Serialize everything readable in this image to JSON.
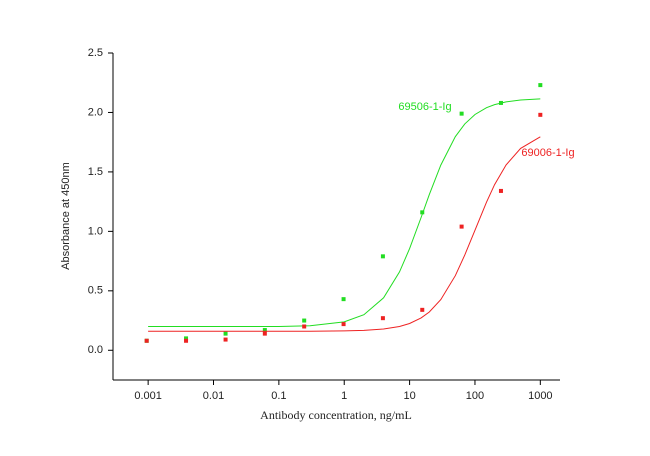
{
  "chart_data": {
    "type": "scatter",
    "x_label": "Antibody concentration, ng/mL",
    "y_label": "Absorbance at 450nm",
    "xscale": "log",
    "xlim": [
      0.00029,
      2000
    ],
    "xticks": [
      0.001,
      0.01,
      0.1,
      1,
      10,
      100,
      1000
    ],
    "ylim": [
      -0.25,
      2.5
    ],
    "yticks": [
      {
        "value": 0,
        "label": "0.0"
      },
      0.5,
      {
        "value": 1,
        "label": "1.0"
      },
      1.5,
      {
        "value": 2,
        "label": "2.0"
      },
      2.5
    ],
    "x": [
      0.00095,
      0.0038,
      0.0153,
      0.061,
      0.244,
      0.977,
      3.906,
      15.625,
      62.5,
      250,
      1000
    ],
    "series": [
      {
        "name": "69506-1-Ig",
        "color": "#22dd22",
        "values": [
          0.08,
          0.1,
          0.14,
          0.17,
          0.25,
          0.43,
          0.79,
          1.16,
          1.99,
          2.08,
          2.23
        ],
        "curve": [
          0.2,
          0.2,
          0.2,
          0.207,
          0.239,
          0.299,
          0.441,
          0.659,
          0.855,
          1.117,
          1.309,
          1.557,
          1.796,
          1.904,
          1.983,
          2.04,
          2.066,
          2.089,
          2.105,
          2.114
        ]
      },
      {
        "name": "69006-1-Ig",
        "color": "#ee2222",
        "values": [
          0.08,
          0.08,
          0.09,
          0.14,
          0.2,
          0.22,
          0.27,
          0.34,
          1.04,
          1.34,
          1.98
        ],
        "curve": [
          0.16,
          0.16,
          0.16,
          0.16,
          0.163,
          0.167,
          0.179,
          0.2,
          0.225,
          0.272,
          0.322,
          0.426,
          0.627,
          0.802,
          1.01,
          1.245,
          1.393,
          1.559,
          1.698,
          1.795
        ]
      }
    ],
    "curve_x": [
      0.001,
      0.01,
      0.1,
      0.3,
      1,
      2,
      4,
      7,
      10,
      15,
      20,
      30,
      50,
      70,
      100,
      150,
      200,
      300,
      500,
      1000
    ]
  }
}
